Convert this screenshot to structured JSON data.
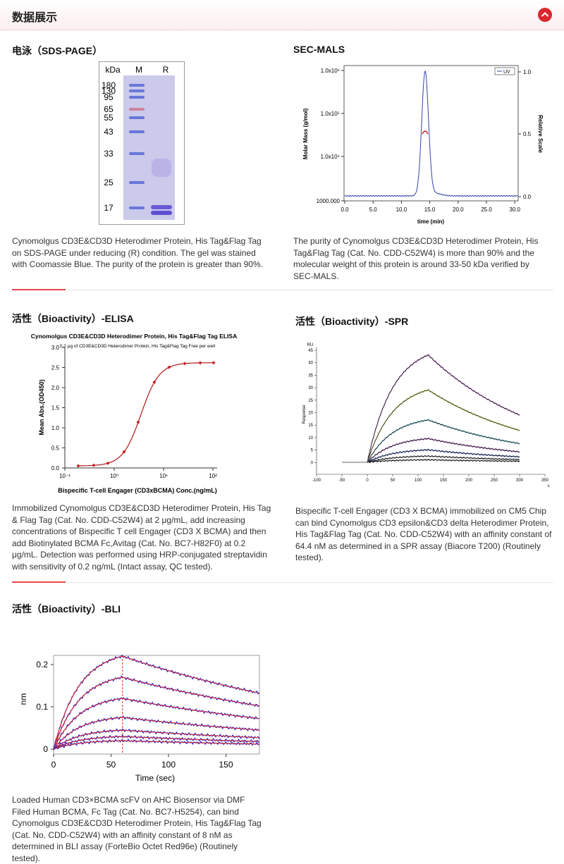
{
  "header": {
    "title": "数据展示"
  },
  "sds_page": {
    "title": "电泳（SDS-PAGE）",
    "lanes": [
      "kDa",
      "M",
      "R"
    ],
    "markers": [
      "180",
      "130",
      "95",
      "65",
      "55",
      "43",
      "33",
      "25",
      "17"
    ],
    "caption": "Cynomolgus CD3E&CD3D Heterodimer Protein, His Tag&Flag Tag on SDS-PAGE under reducing (R) condition. The gel was stained with Coomassie Blue. The purity of the protein is greater than 90%."
  },
  "sec_mals": {
    "title": "SEC-MALS",
    "yticks": [
      "1.0x10⁶",
      "1.0x10⁵",
      "1.0x10⁴",
      "1000.000"
    ],
    "y2ticks": [
      "1.0",
      "0.5",
      "0.0"
    ],
    "xticks": [
      "0.0",
      "5.0",
      "10.0",
      "15.0",
      "20.0",
      "25.0",
      "30.0"
    ],
    "xlabel": "time (min)",
    "ylabel": "Molar Mass (g/mol)",
    "y2label": "Relative Scale",
    "legend": "UV",
    "caption": "The purity of Cynomolgus CD3E&CD3D Heterodimer Protein, His Tag&Flag Tag (Cat. No. CDD-C52W4) is more than 90% and the molecular weight of this protein is around 33-50 kDa verified by SEC-MALS."
  },
  "elisa": {
    "title": "活性（Bioactivity）-ELISA",
    "chart_title": "Cynomolgus CD3E&CD3D Heterodimer Protein, His Tag&Flag Tag  ELISA",
    "chart_subtitle": "0.2 μg of  CD3E&CD3D Heterodimer Protein, His Tag&Flag Tag Free per well",
    "yticks": [
      "3.0",
      "2.5",
      "2.0",
      "1.5",
      "1.0",
      "0.5",
      "0.0"
    ],
    "xticks": [
      "10⁻¹",
      "10⁰",
      "10¹",
      "10²"
    ],
    "ylabel": "Mean Abs.(OD450)",
    "xlabel": "Bispecific T-cell Engager (CD3xBCMA) Conc.(ng/mL)",
    "caption": "Immobilized Cynomolgus CD3E&CD3D Heterodimer Protein, His Tag & Flag Tag (Cat. No. CDD-C52W4) at 2 μg/mL, add increasing concentrations of Bispecific T cell Engager (CD3 X BCMA) and then add Biotinylated BCMA Fc,Avitag (Cat. No. BC7-H82F0) at 0.2 μg/mL. Detection was performed using HRP-conjugated streptavidin with sensitivity of 0.2 ng/mL (Intact assay, QC tested)."
  },
  "spr": {
    "title": "活性（Bioactivity）-SPR",
    "yunit": "RU",
    "yticks": [
      "45",
      "40",
      "35",
      "30",
      "25",
      "20",
      "15",
      "10",
      "5",
      "0"
    ],
    "xticks": [
      "-100",
      "-50",
      "0",
      "50",
      "100",
      "150",
      "200",
      "250",
      "300",
      "350"
    ],
    "xunit": "s",
    "ylabel": "Response",
    "caption": "Bispecific T-cell Engager (CD3 X BCMA) immobilized on CM5 Chip can bind Cynomolgus CD3 epsilon&CD3 delta Heterodimer Protein, His Tag&Flag Tag (Cat. No. CDD-C52W4) with an affinity constant of 64.4 nM as determined in a SPR assay (Biacore T200) (Routinely tested)."
  },
  "bli": {
    "title": "活性（Bioactivity）-BLI",
    "yticks": [
      "0.2",
      "0.1",
      "0"
    ],
    "xticks": [
      "0",
      "50",
      "100",
      "150"
    ],
    "ylabel": "nm",
    "xlabel": "Time (sec)",
    "caption": "Loaded Human CD3×BCMA scFV on AHC Biosensor via DMF Filed Human BCMA, Fc Tag (Cat. No. BC7-H5254), can bind Cynomolgus CD3E&CD3D Heterodimer Protein, His Tag&Flag Tag (Cat. No. CDD-C52W4) with an affinity constant of 8 nM as determined in BLI assay (ForteBio Octet Red96e) (Routinely tested)."
  }
}
